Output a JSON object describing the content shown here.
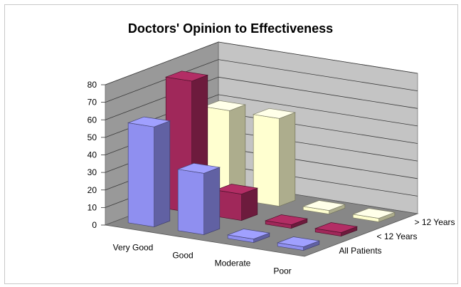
{
  "chart_data": {
    "type": "bar",
    "title": "Doctors' Opinion to Effectiveness",
    "xlabel": "",
    "ylabel": "",
    "categories": [
      "Very Good",
      "Good",
      "Moderate",
      "Poor"
    ],
    "series": [
      {
        "name": "All Patients",
        "values": [
          57,
          35,
          2,
          2
        ],
        "color": "#8f8ff0"
      },
      {
        "name": "< 12 Years",
        "values": [
          75,
          15,
          2,
          2
        ],
        "color": "#a0285a"
      },
      {
        "name": "> 12 Years",
        "values": [
          50,
          50,
          2,
          2
        ],
        "color": "#ffffd0"
      }
    ],
    "yticks": [
      0,
      10,
      20,
      30,
      40,
      50,
      60,
      70,
      80
    ],
    "ylim": [
      0,
      80
    ],
    "grid": true,
    "legend": "none"
  }
}
